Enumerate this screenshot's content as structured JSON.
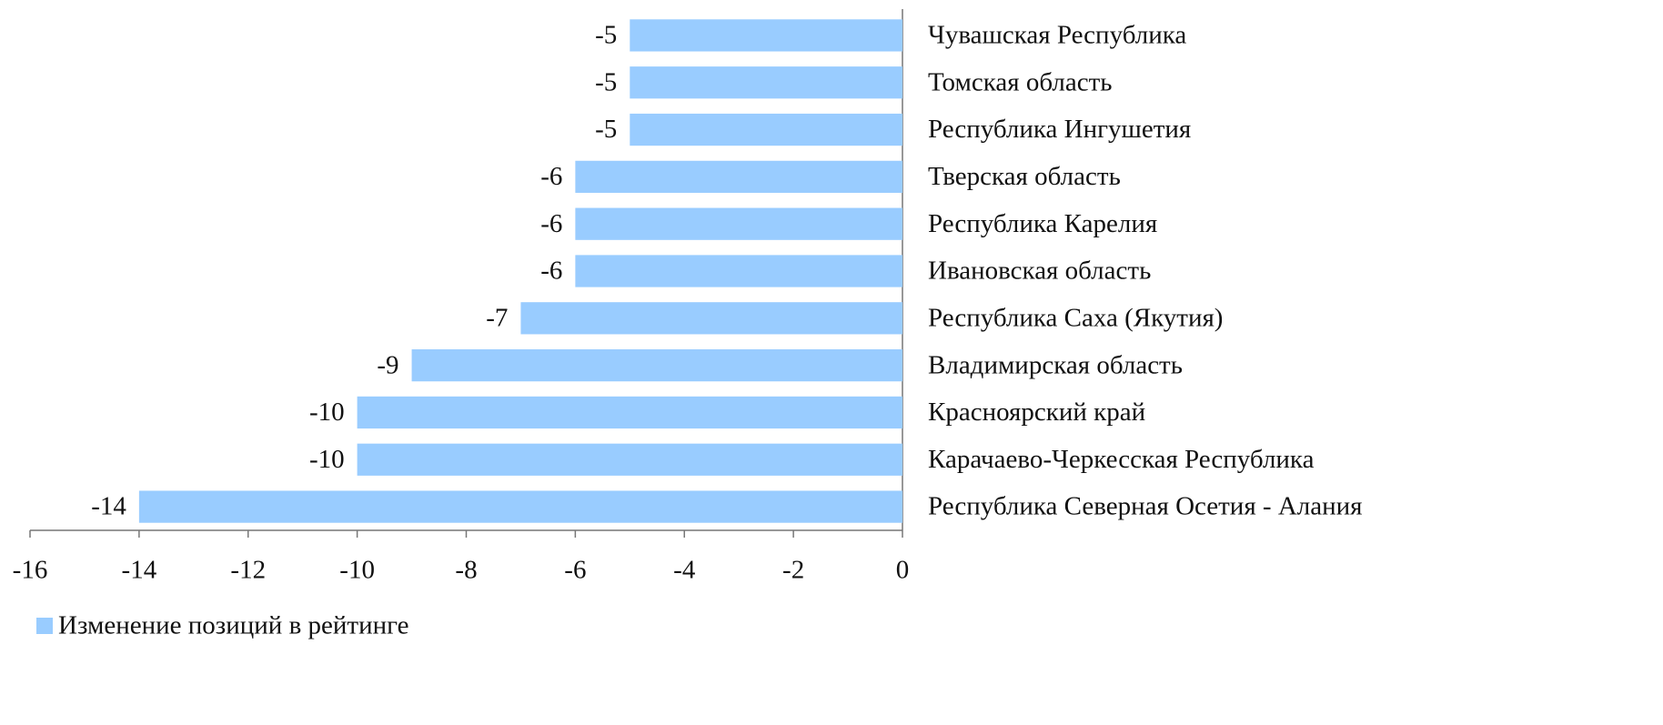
{
  "chart_data": {
    "type": "hbar",
    "categories": [
      "Чувашская Республика",
      "Томская область",
      "Республика Ингушетия",
      "Тверская область",
      "Республика Карелия",
      "Ивановская область",
      "Республика Саха (Якутия)",
      "Владимирская область",
      "Красноярский край",
      "Карачаево-Черкесская Республика",
      "Республика Северная Осетия - Алания"
    ],
    "series": [
      {
        "name": "Изменение позиций в рейтинге",
        "color": "#99ccff",
        "values": [
          -5,
          -5,
          -5,
          -6,
          -6,
          -6,
          -7,
          -9,
          -10,
          -10,
          -14
        ]
      }
    ],
    "xlim": [
      -16,
      0
    ],
    "xticks": [
      -16,
      -14,
      -12,
      -10,
      -8,
      -6,
      -4,
      -2,
      0
    ],
    "legend": "bottom-left"
  }
}
